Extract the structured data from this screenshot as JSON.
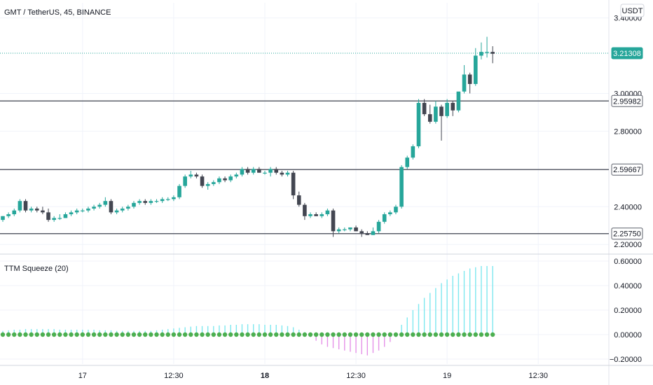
{
  "header": {
    "symbol": "GMT / TetherUS",
    "interval": "45",
    "exchange": "BINANCE",
    "title": "GMT / TetherUS, 45, BINANCE"
  },
  "currency_badge": "USDT",
  "indicator": {
    "label": "TTM Squeeze (20)"
  },
  "price_tags": [
    {
      "text": "3.21308",
      "value": 3.21308,
      "style": "current"
    },
    {
      "text": "2.95982",
      "value": 2.95982,
      "style": "level"
    },
    {
      "text": "2.59667",
      "value": 2.59667,
      "style": "level"
    },
    {
      "text": "2.25750",
      "value": 2.2575,
      "style": "level"
    }
  ],
  "colors": {
    "up": "#26a69a",
    "down": "#434651",
    "line": "#5d606b",
    "grid": "#f0f3fa",
    "mom_up": "#7ee8ef",
    "mom_down": "#e592e8",
    "dots": "#4caf50",
    "current_tag": "#26a69a"
  },
  "chart_data": [
    {
      "type": "candlestick",
      "title": "GMT / TetherUS, 45, BINANCE",
      "ylim": [
        2.16,
        3.48
      ],
      "y_ticks": [
        "3.40000",
        "3.00000",
        "2.80000",
        "2.40000",
        "2.20000"
      ],
      "y_tick_values": [
        3.4,
        3.0,
        2.8,
        2.4,
        2.2
      ],
      "x_ticks": [
        "17",
        "12:30",
        "18",
        "12:30",
        "19",
        "12:30"
      ],
      "x_tick_bold": [
        false,
        false,
        true,
        false,
        false,
        false
      ],
      "x_tick_index": [
        14,
        30,
        46,
        62,
        78,
        94
      ],
      "horizontal_levels": [
        2.95982,
        2.59667,
        2.2575
      ],
      "current_price": 3.21308,
      "candles": [
        [
          2.33,
          2.35,
          2.32,
          2.35
        ],
        [
          2.35,
          2.37,
          2.34,
          2.36
        ],
        [
          2.36,
          2.39,
          2.35,
          2.38
        ],
        [
          2.38,
          2.44,
          2.37,
          2.43
        ],
        [
          2.43,
          2.44,
          2.37,
          2.38
        ],
        [
          2.38,
          2.4,
          2.37,
          2.39
        ],
        [
          2.39,
          2.4,
          2.37,
          2.38
        ],
        [
          2.38,
          2.4,
          2.36,
          2.37
        ],
        [
          2.37,
          2.39,
          2.32,
          2.33
        ],
        [
          2.33,
          2.35,
          2.32,
          2.34
        ],
        [
          2.34,
          2.36,
          2.33,
          2.34
        ],
        [
          2.34,
          2.37,
          2.34,
          2.36
        ],
        [
          2.36,
          2.38,
          2.35,
          2.37
        ],
        [
          2.37,
          2.39,
          2.36,
          2.38
        ],
        [
          2.38,
          2.39,
          2.37,
          2.38
        ],
        [
          2.38,
          2.4,
          2.37,
          2.39
        ],
        [
          2.39,
          2.41,
          2.38,
          2.4
        ],
        [
          2.4,
          2.42,
          2.39,
          2.41
        ],
        [
          2.41,
          2.45,
          2.4,
          2.43
        ],
        [
          2.43,
          2.44,
          2.36,
          2.37
        ],
        [
          2.37,
          2.39,
          2.36,
          2.38
        ],
        [
          2.38,
          2.4,
          2.37,
          2.39
        ],
        [
          2.39,
          2.41,
          2.38,
          2.4
        ],
        [
          2.4,
          2.43,
          2.39,
          2.42
        ],
        [
          2.42,
          2.44,
          2.41,
          2.43
        ],
        [
          2.43,
          2.44,
          2.41,
          2.42
        ],
        [
          2.42,
          2.44,
          2.41,
          2.43
        ],
        [
          2.43,
          2.44,
          2.42,
          2.43
        ],
        [
          2.43,
          2.45,
          2.42,
          2.44
        ],
        [
          2.44,
          2.45,
          2.43,
          2.44
        ],
        [
          2.44,
          2.46,
          2.43,
          2.45
        ],
        [
          2.45,
          2.52,
          2.44,
          2.51
        ],
        [
          2.51,
          2.57,
          2.5,
          2.56
        ],
        [
          2.56,
          2.59,
          2.55,
          2.57
        ],
        [
          2.57,
          2.58,
          2.55,
          2.56
        ],
        [
          2.56,
          2.57,
          2.5,
          2.51
        ],
        [
          2.51,
          2.53,
          2.49,
          2.52
        ],
        [
          2.52,
          2.54,
          2.51,
          2.53
        ],
        [
          2.53,
          2.56,
          2.52,
          2.55
        ],
        [
          2.55,
          2.56,
          2.53,
          2.54
        ],
        [
          2.54,
          2.57,
          2.53,
          2.56
        ],
        [
          2.56,
          2.58,
          2.55,
          2.57
        ],
        [
          2.57,
          2.61,
          2.56,
          2.6
        ],
        [
          2.6,
          2.61,
          2.57,
          2.58
        ],
        [
          2.58,
          2.61,
          2.57,
          2.6
        ],
        [
          2.6,
          2.61,
          2.58,
          2.58
        ],
        [
          2.58,
          2.59,
          2.57,
          2.58
        ],
        [
          2.58,
          2.61,
          2.56,
          2.6
        ],
        [
          2.6,
          2.61,
          2.57,
          2.58
        ],
        [
          2.58,
          2.59,
          2.56,
          2.57
        ],
        [
          2.57,
          2.59,
          2.56,
          2.58
        ],
        [
          2.58,
          2.59,
          2.44,
          2.46
        ],
        [
          2.46,
          2.48,
          2.4,
          2.41
        ],
        [
          2.41,
          2.42,
          2.33,
          2.35
        ],
        [
          2.35,
          2.37,
          2.34,
          2.36
        ],
        [
          2.36,
          2.37,
          2.35,
          2.35
        ],
        [
          2.35,
          2.37,
          2.34,
          2.36
        ],
        [
          2.36,
          2.39,
          2.35,
          2.38
        ],
        [
          2.38,
          2.39,
          2.24,
          2.27
        ],
        [
          2.27,
          2.29,
          2.26,
          2.28
        ],
        [
          2.28,
          2.29,
          2.27,
          2.28
        ],
        [
          2.28,
          2.29,
          2.27,
          2.29
        ],
        [
          2.29,
          2.3,
          2.27,
          2.27
        ],
        [
          2.27,
          2.28,
          2.24,
          2.26
        ],
        [
          2.26,
          2.27,
          2.25,
          2.25
        ],
        [
          2.25,
          2.29,
          2.25,
          2.27
        ],
        [
          2.27,
          2.33,
          2.26,
          2.32
        ],
        [
          2.32,
          2.37,
          2.31,
          2.36
        ],
        [
          2.36,
          2.38,
          2.35,
          2.37
        ],
        [
          2.37,
          2.41,
          2.36,
          2.4
        ],
        [
          2.4,
          2.62,
          2.39,
          2.61
        ],
        [
          2.61,
          2.67,
          2.6,
          2.66
        ],
        [
          2.66,
          2.73,
          2.65,
          2.72
        ],
        [
          2.72,
          2.97,
          2.71,
          2.95
        ],
        [
          2.95,
          2.97,
          2.88,
          2.89
        ],
        [
          2.89,
          2.94,
          2.84,
          2.85
        ],
        [
          2.85,
          2.96,
          2.84,
          2.93
        ],
        [
          2.93,
          2.94,
          2.75,
          2.88
        ],
        [
          2.88,
          2.97,
          2.87,
          2.95
        ],
        [
          2.95,
          2.96,
          2.88,
          2.91
        ],
        [
          2.91,
          3.0,
          2.9,
          3.01
        ],
        [
          3.01,
          3.15,
          3.0,
          3.1
        ],
        [
          3.1,
          3.11,
          3.0,
          3.05
        ],
        [
          3.05,
          3.24,
          3.04,
          3.2
        ],
        [
          3.2,
          3.27,
          3.18,
          3.22
        ],
        [
          3.22,
          3.3,
          3.19,
          3.22
        ],
        [
          3.22,
          3.25,
          3.16,
          3.21
        ]
      ]
    },
    {
      "type": "histogram",
      "title": "TTM Squeeze (20)",
      "ylim": [
        -0.24,
        0.64
      ],
      "y_ticks": [
        "0.60000",
        "0.40000",
        "0.20000",
        "0.00000",
        "−0.20000"
      ],
      "y_tick_values": [
        0.6,
        0.4,
        0.2,
        0.0,
        -0.2
      ],
      "squeeze_dots_value": 0.0,
      "momentum": [
        0.03,
        0.035,
        0.04,
        0.04,
        0.045,
        0.045,
        0.045,
        0.045,
        0.045,
        0.045,
        0.04,
        0.04,
        0.04,
        0.04,
        0.04,
        0.04,
        0.04,
        0.035,
        0.035,
        0.035,
        0.03,
        0.03,
        0.03,
        0.03,
        0.03,
        0.03,
        0.03,
        0.035,
        0.04,
        0.045,
        0.05,
        0.055,
        0.06,
        0.065,
        0.07,
        0.07,
        0.07,
        0.07,
        0.075,
        0.075,
        0.08,
        0.08,
        0.085,
        0.085,
        0.085,
        0.085,
        0.08,
        0.08,
        0.08,
        0.075,
        0.07,
        0.06,
        0.04,
        0.02,
        -0.02,
        -0.05,
        -0.08,
        -0.1,
        -0.11,
        -0.12,
        -0.13,
        -0.14,
        -0.15,
        -0.16,
        -0.17,
        -0.15,
        -0.13,
        -0.1,
        -0.06,
        -0.02,
        0.08,
        0.14,
        0.2,
        0.25,
        0.3,
        0.34,
        0.38,
        0.42,
        0.45,
        0.48,
        0.5,
        0.52,
        0.54,
        0.55,
        0.56,
        0.56,
        0.56
      ]
    }
  ]
}
